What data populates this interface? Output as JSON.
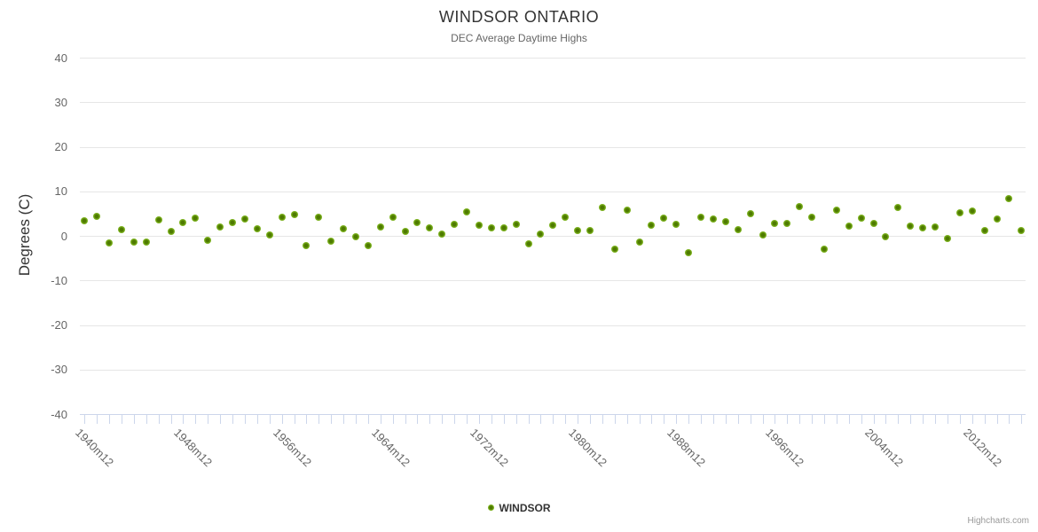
{
  "chart": {
    "title": "WINDSOR ONTARIO",
    "subtitle": "DEC Average Daytime Highs",
    "y_axis_title": "Degrees (C)",
    "legend_label": "WINDSOR",
    "credits": "Highcharts.com"
  },
  "colors": {
    "marker_green_outer": "#8ec735",
    "marker_green_inner": "#4e7a00",
    "gridline": "#e6e6e6",
    "axis_line": "#ccd6eb",
    "title_text": "#333333",
    "secondary_text": "#666666",
    "credits_text": "#999999"
  },
  "chart_data": {
    "type": "scatter",
    "title": "WINDSOR ONTARIO",
    "subtitle": "DEC Average Daytime Highs",
    "xlabel": "",
    "ylabel": "Degrees (C)",
    "ylim": [
      -40,
      40
    ],
    "y_ticks": [
      40,
      30,
      20,
      10,
      0,
      -10,
      -20,
      -30,
      -40
    ],
    "grid": true,
    "legend_position": "bottom-center",
    "x_tick_interval_years": 1,
    "x_label_step_years": 8,
    "x_visible_tick_labels": [
      "1940m12",
      "1948m12",
      "1956m12",
      "1964m12",
      "1972m12",
      "1980m12",
      "1988m12",
      "1996m12",
      "2004m12",
      "2012m12"
    ],
    "series": [
      {
        "name": "WINDSOR",
        "categories": [
          "1940m12",
          "1941m12",
          "1942m12",
          "1943m12",
          "1944m12",
          "1945m12",
          "1946m12",
          "1947m12",
          "1948m12",
          "1949m12",
          "1950m12",
          "1951m12",
          "1952m12",
          "1953m12",
          "1954m12",
          "1955m12",
          "1956m12",
          "1957m12",
          "1958m12",
          "1959m12",
          "1960m12",
          "1961m12",
          "1962m12",
          "1963m12",
          "1964m12",
          "1965m12",
          "1966m12",
          "1967m12",
          "1968m12",
          "1969m12",
          "1970m12",
          "1971m12",
          "1972m12",
          "1973m12",
          "1974m12",
          "1975m12",
          "1976m12",
          "1977m12",
          "1978m12",
          "1979m12",
          "1980m12",
          "1981m12",
          "1982m12",
          "1983m12",
          "1984m12",
          "1985m12",
          "1986m12",
          "1987m12",
          "1988m12",
          "1989m12",
          "1990m12",
          "1991m12",
          "1992m12",
          "1993m12",
          "1994m12",
          "1995m12",
          "1996m12",
          "1997m12",
          "1998m12",
          "1999m12",
          "2000m12",
          "2001m12",
          "2002m12",
          "2003m12",
          "2004m12",
          "2005m12",
          "2006m12",
          "2007m12",
          "2008m12",
          "2009m12",
          "2010m12",
          "2011m12",
          "2012m12",
          "2013m12",
          "2014m12",
          "2015m12",
          "2016m12"
        ],
        "values": [
          3.3,
          4.3,
          -1.5,
          1.4,
          -1.3,
          -1.4,
          3.5,
          0.9,
          3.0,
          4.0,
          -1.0,
          2.0,
          3.0,
          3.8,
          1.5,
          0.2,
          4.2,
          4.8,
          -2.2,
          4.1,
          -1.1,
          1.6,
          -0.1,
          -2.1,
          1.9,
          4.2,
          0.9,
          3.0,
          1.7,
          0.4,
          2.6,
          5.4,
          2.4,
          1.8,
          1.7,
          2.5,
          -1.7,
          0.3,
          2.3,
          4.1,
          1.1,
          1.1,
          6.4,
          -3.0,
          5.8,
          -1.3,
          2.3,
          3.9,
          2.6,
          -3.8,
          4.2,
          3.7,
          3.2,
          1.4,
          4.9,
          0.1,
          2.7,
          2.7,
          6.6,
          4.1,
          -3.0,
          5.8,
          2.1,
          3.9,
          2.7,
          -0.2,
          6.3,
          2.1,
          1.7,
          2.0,
          -0.5,
          5.2,
          5.5,
          1.1,
          3.7,
          8.4,
          1.2
        ]
      }
    ]
  }
}
